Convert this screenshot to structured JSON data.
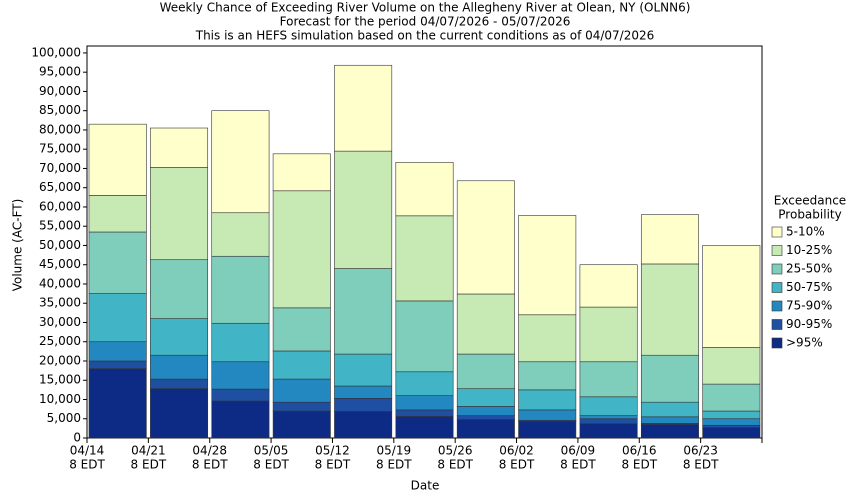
{
  "chart_data": {
    "type": "stacked_bar",
    "title": "Weekly Chance of Exceeding River Volume on the Allegheny River at Olean, NY (OLNN6)",
    "subtitle": "Forecast for the period 04/07/2026 - 05/07/2026",
    "note": "This is an HEFS simulation based on the current conditions as of 04/07/2026",
    "x_label": "Date",
    "y_label": "Volume (AC-FT)",
    "legend_title": [
      "Exceedance",
      "Probability"
    ],
    "categories": [
      {
        "date": "04/14",
        "time": "8 EDT"
      },
      {
        "date": "04/21",
        "time": "8 EDT"
      },
      {
        "date": "04/28",
        "time": "8 EDT"
      },
      {
        "date": "05/05",
        "time": "8 EDT"
      },
      {
        "date": "05/12",
        "time": "8 EDT"
      },
      {
        "date": "05/19",
        "time": "8 EDT"
      },
      {
        "date": "05/26",
        "time": "8 EDT"
      },
      {
        "date": "06/02",
        "time": "8 EDT"
      },
      {
        "date": "06/09",
        "time": "8 EDT"
      },
      {
        "date": "06/16",
        "time": "8 EDT"
      },
      {
        "date": "06/23",
        "time": "8 EDT"
      }
    ],
    "series": [
      {
        "name": ">95%",
        "color": "#0d2a84",
        "values": [
          18000,
          12800,
          9600,
          7000,
          6900,
          5600,
          4800,
          4300,
          3700,
          3500,
          2700
        ]
      },
      {
        "name": "90-95%",
        "color": "#1f4fa0",
        "values": [
          2000,
          2500,
          3100,
          2300,
          3400,
          1700,
          1000,
          300,
          1300,
          300,
          600
        ]
      },
      {
        "name": "75-90%",
        "color": "#2388c0",
        "values": [
          5000,
          6200,
          7100,
          6000,
          3200,
          3700,
          2400,
          2700,
          800,
          1700,
          1700
        ]
      },
      {
        "name": "50-75%",
        "color": "#41b4c6",
        "values": [
          12500,
          9500,
          10000,
          7300,
          8300,
          6200,
          4600,
          5200,
          4900,
          3800,
          2000
        ]
      },
      {
        "name": "25-50%",
        "color": "#7fcdbb",
        "values": [
          16000,
          15300,
          17400,
          11200,
          22200,
          18400,
          9000,
          7300,
          9100,
          12200,
          7000
        ]
      },
      {
        "name": "10-25%",
        "color": "#c7e9b4",
        "values": [
          9500,
          24000,
          11300,
          30400,
          30500,
          22100,
          15600,
          12200,
          14200,
          23700,
          9500
        ]
      },
      {
        "name": "5-10%",
        "color": "#ffffcc",
        "values": [
          18500,
          10200,
          26500,
          9600,
          22300,
          13900,
          29400,
          25800,
          11000,
          12800,
          26500
        ]
      }
    ],
    "ylim": [
      0,
      101800
    ],
    "yticks": [
      0,
      {
        "value": 5000,
        "label": "5,000"
      },
      {
        "value": 10000,
        "label": "10,000"
      },
      {
        "value": 15000,
        "label": "15,000"
      },
      {
        "value": 20000,
        "label": "20,000"
      },
      {
        "value": 25000,
        "label": "25,000"
      },
      {
        "value": 30000,
        "label": "30,000"
      },
      {
        "value": 35000,
        "label": "35,000"
      },
      {
        "value": 40000,
        "label": "40,000"
      },
      {
        "value": 45000,
        "label": "45,000"
      },
      {
        "value": 50000,
        "label": "50,000"
      },
      {
        "value": 55000,
        "label": "55,000"
      },
      {
        "value": 60000,
        "label": "60,000"
      },
      {
        "value": 65000,
        "label": "65,000"
      },
      {
        "value": 70000,
        "label": "70,000"
      },
      {
        "value": 75000,
        "label": "75,000"
      },
      {
        "value": 80000,
        "label": "80,000"
      },
      {
        "value": 85000,
        "label": "85,000"
      },
      {
        "value": 90000,
        "label": "90,000"
      },
      {
        "value": 95000,
        "label": "95,000"
      },
      {
        "value": 100000,
        "label": "100,000"
      }
    ]
  }
}
